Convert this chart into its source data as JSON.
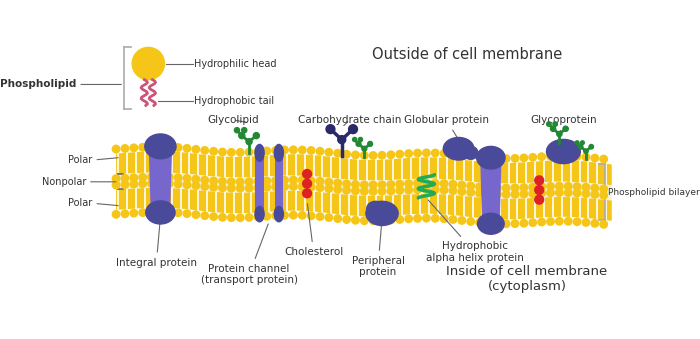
{
  "bg_color": "#ffffff",
  "title_outside": "Outside of cell membrane",
  "title_inside": "Inside of cell membrane\n(cytoplasm)",
  "title_phospholipid_bilayer": "Phospholipid bilayer",
  "label_phospholipid": "Phospholipid",
  "label_hydrophilic_head": "Hydrophilic head",
  "label_hydrophobic_tail": "Hydrophobic tail",
  "label_polar": "Polar",
  "label_nonpolar": "Nonpolar",
  "label_glycolipid": "Glycolipid",
  "label_carbohydrate_chain": "Carbohydrate chain",
  "label_globular_protein": "Globular protein",
  "label_glycoprotein": "Glycoprotein",
  "label_integral_protein": "Integral protein",
  "label_protein_channel": "Protein channel\n(transport protein)",
  "label_cholesterol": "Cholesterol",
  "label_peripheral_protein": "Peripheral\nprotein",
  "label_hydrophobic_alpha": "Hydrophobic\nalpha helix protein",
  "membrane_color": "#F5C518",
  "protein_color_dark": "#4a4a9a",
  "protein_color_light": "#7766cc",
  "glycolipid_color": "#228833",
  "cholesterol_color": "#dd2222",
  "phospholipid_head_color": "#F5C518",
  "phospholipid_tail_color": "#cc5577",
  "helix_color": "#22aa55",
  "text_color": "#333333",
  "line_color": "#666666"
}
